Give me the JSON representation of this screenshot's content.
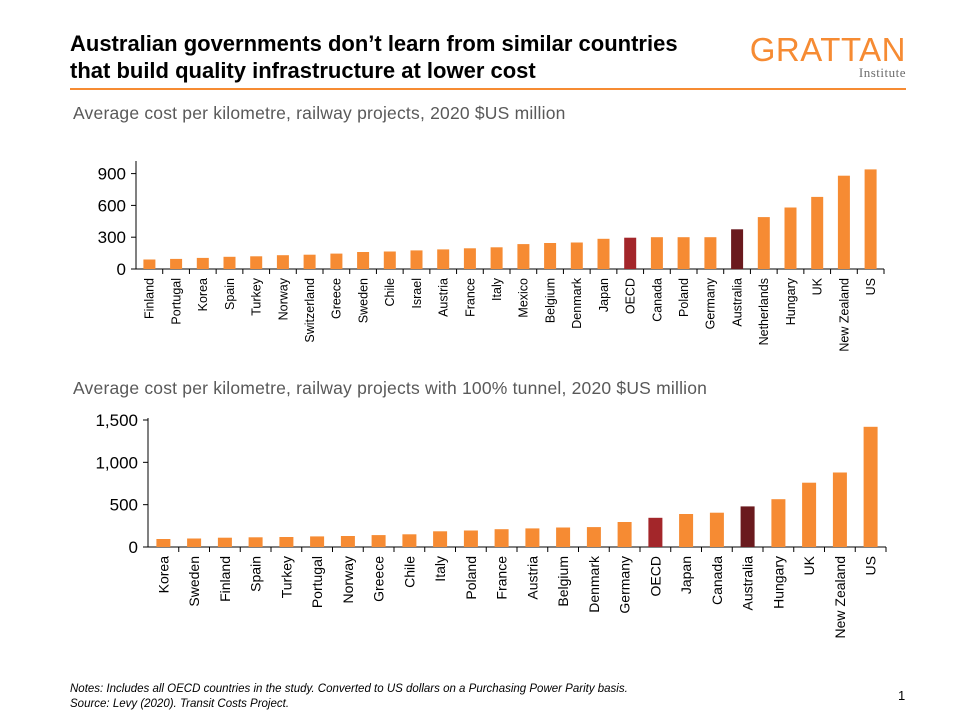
{
  "title_lines": [
    "Australian governments don’t learn from similar countries",
    "that build quality infrastructure at lower cost"
  ],
  "logo": {
    "main": "GRATTAN",
    "sub": "Institute"
  },
  "colors": {
    "bar": "#F68B33",
    "oecd": "#A3262A",
    "australia": "#6A1A1E",
    "axis": "#000000"
  },
  "chart_data": [
    {
      "type": "bar",
      "title": "Average cost per kilometre, railway projects, 2020 $US million",
      "xlabel": "",
      "ylabel": "",
      "ylim": [
        0,
        1000
      ],
      "yticks": [
        0,
        300,
        600,
        900
      ],
      "ytick_labels": [
        "0",
        "300",
        "600",
        "900"
      ],
      "grid": false,
      "categories": [
        "Finland",
        "Portugal",
        "Korea",
        "Spain",
        "Turkey",
        "Norway",
        "Switzerland",
        "Greece",
        "Sweden",
        "Chile",
        "Israel",
        "Austria",
        "France",
        "Italy",
        "Mexico",
        "Belgium",
        "Denmark",
        "Japan",
        "OECD",
        "Canada",
        "Poland",
        "Germany",
        "Australia",
        "Netherlands",
        "Hungary",
        "UK",
        "New Zealand",
        "US"
      ],
      "values": [
        90,
        95,
        105,
        115,
        120,
        130,
        135,
        145,
        160,
        165,
        175,
        185,
        195,
        205,
        235,
        245,
        250,
        285,
        295,
        300,
        300,
        300,
        375,
        490,
        580,
        680,
        880,
        940
      ],
      "highlight": {
        "OECD": "oecd",
        "Australia": "australia"
      }
    },
    {
      "type": "bar",
      "title": "Average cost per kilometre, railway projects with 100% tunnel, 2020 $US million",
      "xlabel": "",
      "ylabel": "",
      "ylim": [
        0,
        1500
      ],
      "yticks": [
        0,
        500,
        1000,
        1500
      ],
      "ytick_labels": [
        "0",
        "500",
        "1,000",
        "1,500"
      ],
      "grid": false,
      "categories": [
        "Korea",
        "Sweden",
        "Finland",
        "Spain",
        "Turkey",
        "Portugal",
        "Norway",
        "Greece",
        "Chile",
        "Italy",
        "Poland",
        "France",
        "Austria",
        "Belgium",
        "Denmark",
        "Germany",
        "OECD",
        "Japan",
        "Canada",
        "Australia",
        "Hungary",
        "UK",
        "New Zealand",
        "US"
      ],
      "values": [
        95,
        100,
        110,
        115,
        118,
        125,
        130,
        140,
        150,
        185,
        195,
        210,
        220,
        230,
        235,
        295,
        345,
        390,
        405,
        480,
        565,
        760,
        880,
        1420
      ],
      "highlight": {
        "OECD": "oecd",
        "Australia": "australia"
      }
    }
  ],
  "notes": [
    "Notes: Includes all OECD countries in the study. Converted to US dollars on a Purchasing Power Parity basis.",
    "Source: Levy (2020).  Transit Costs Project."
  ],
  "page_number": "1"
}
